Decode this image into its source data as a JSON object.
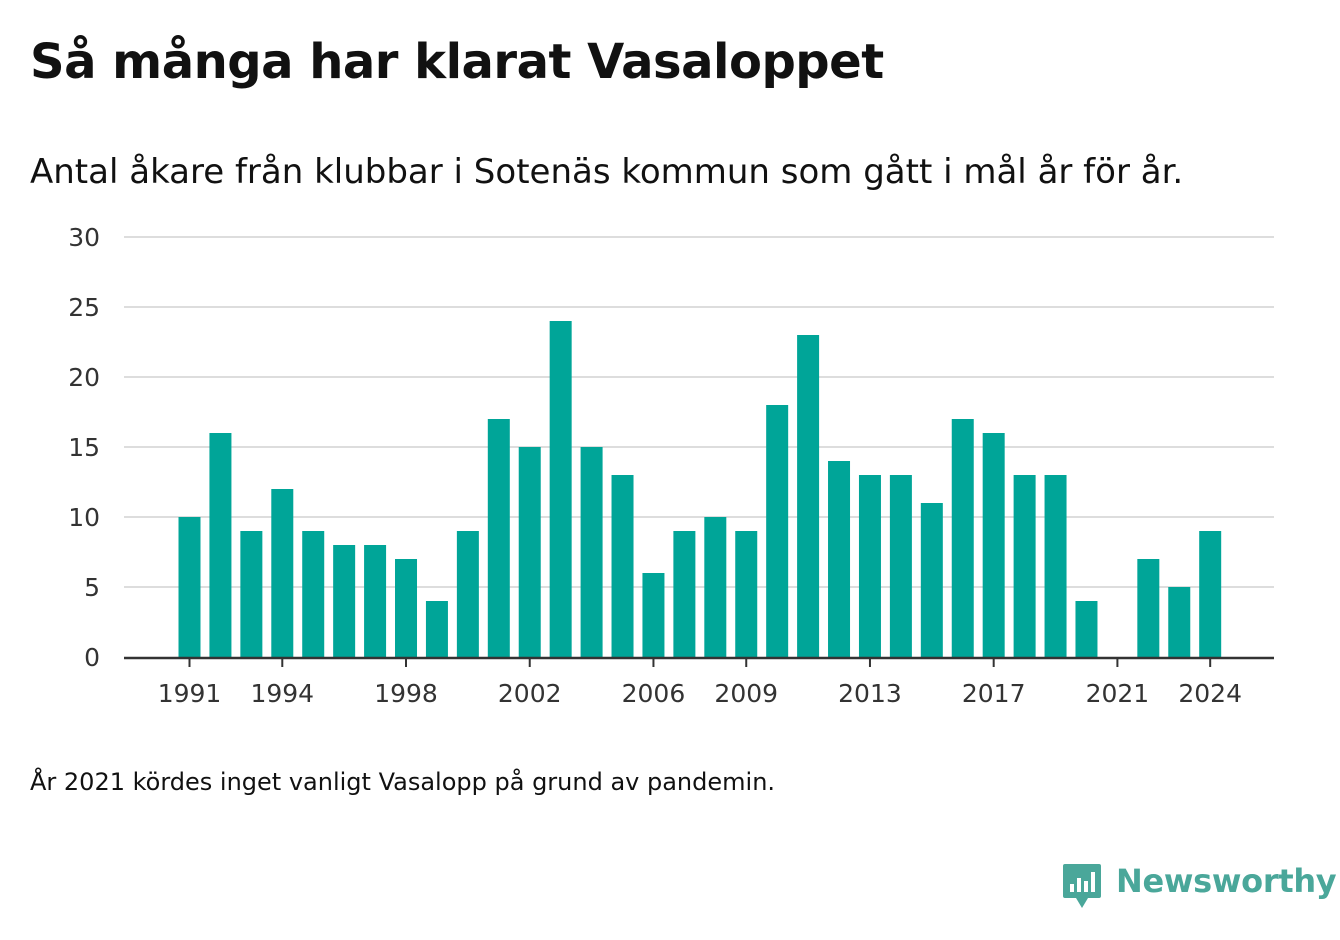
{
  "header": {
    "title": "Så många har klarat Vasaloppet",
    "subtitle": "Antal åkare från klubbar i Sotenäs kommun som gått i mål år för år."
  },
  "footer": {
    "note": "År 2021 kördes inget vanligt Vasalopp på grund av pandemin.",
    "brand": "Newsworthy",
    "brand_icon": "bar-chart-speech-bubble-icon"
  },
  "colors": {
    "bar": "#00a598",
    "gridline": "#dddddd",
    "axis": "#333333",
    "brand": "#4aa79a"
  },
  "chart_data": {
    "type": "bar",
    "categories": [
      1991,
      1992,
      1993,
      1994,
      1995,
      1996,
      1997,
      1998,
      1999,
      2000,
      2001,
      2002,
      2003,
      2004,
      2005,
      2006,
      2007,
      2008,
      2009,
      2010,
      2011,
      2012,
      2013,
      2014,
      2015,
      2016,
      2017,
      2018,
      2019,
      2020,
      2021,
      2022,
      2023,
      2024
    ],
    "values": [
      10,
      16,
      9,
      12,
      9,
      8,
      8,
      7,
      4,
      9,
      17,
      15,
      24,
      15,
      13,
      6,
      9,
      10,
      9,
      18,
      23,
      14,
      13,
      13,
      11,
      17,
      16,
      13,
      13,
      4,
      null,
      7,
      5,
      9
    ],
    "x_tick_labels": [
      "1991",
      "1994",
      "1998",
      "2002",
      "2006",
      "2009",
      "2013",
      "2017",
      "2021",
      "2024"
    ],
    "y_ticks": [
      0,
      5,
      10,
      15,
      20,
      25,
      30
    ],
    "ylim": [
      0,
      30
    ],
    "xlabel": "",
    "ylabel": "",
    "grid": true,
    "legend": "none"
  }
}
